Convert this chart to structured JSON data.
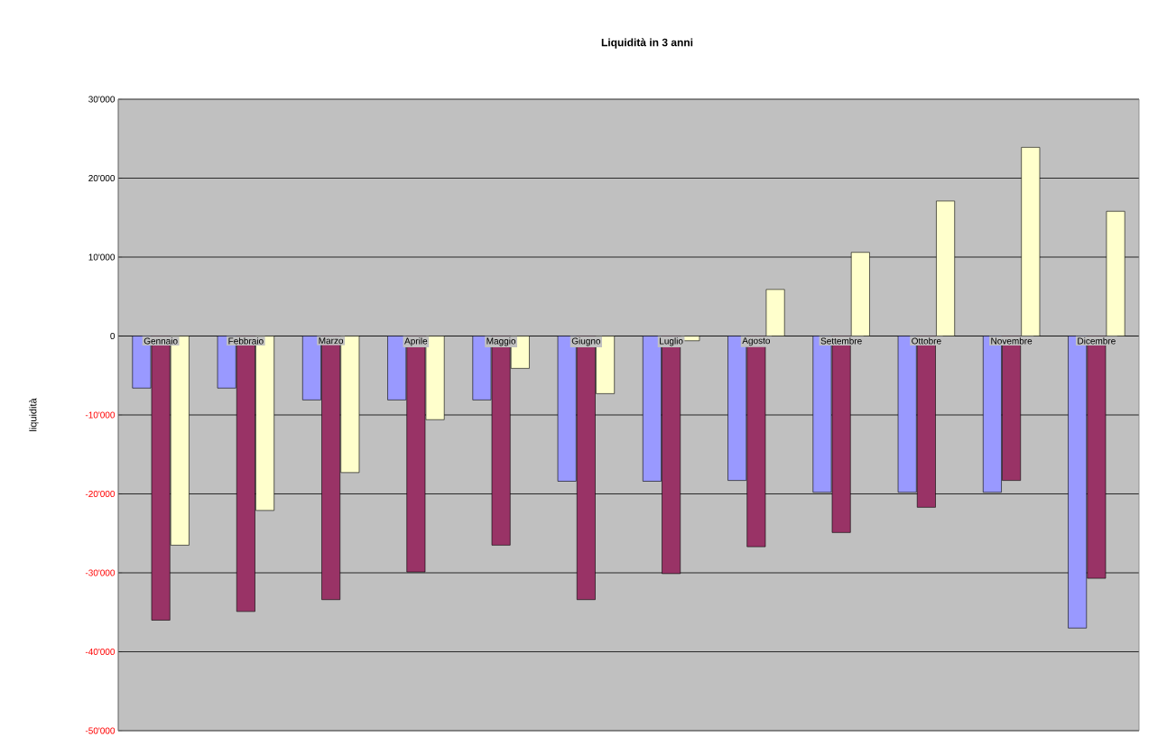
{
  "chart_data": {
    "type": "bar",
    "title": "Liquidità in 3 anni",
    "ylabel": "liquidità",
    "categories": [
      "Gennaio",
      "Febbraio",
      "Marzo",
      "Aprile",
      "Maggio",
      "Giugno",
      "Luglio",
      "Agosto",
      "Settembre",
      "Ottobre",
      "Novembre",
      "Dicembre"
    ],
    "series": [
      {
        "color": "#9999ff",
        "values": [
          -6600,
          -6600,
          -8100,
          -8100,
          -8100,
          -18400,
          -18400,
          -18300,
          -19800,
          -19800,
          -19800,
          -37000
        ]
      },
      {
        "color": "#993366",
        "values": [
          -36000,
          -34900,
          -33400,
          -29900,
          -26500,
          -33400,
          -30100,
          -26700,
          -24900,
          -21700,
          -18300,
          -30700
        ]
      },
      {
        "color": "#ffffcc",
        "values": [
          -26500,
          -22100,
          -17300,
          -10600,
          -4100,
          -7300,
          -600,
          5900,
          10600,
          17100,
          23900,
          15800
        ]
      }
    ],
    "ylim": [
      -50000,
      30000
    ],
    "yticks": [
      {
        "value": -50000,
        "label": "-50'000"
      },
      {
        "value": -40000,
        "label": "-40'000"
      },
      {
        "value": -30000,
        "label": "-30'000"
      },
      {
        "value": -20000,
        "label": "-20'000"
      },
      {
        "value": -10000,
        "label": "-10'000"
      },
      0,
      {
        "value": 10000,
        "label": "10'000"
      },
      {
        "value": 20000,
        "label": "20'000"
      },
      {
        "value": 30000,
        "label": "30'000"
      }
    ],
    "grid": "y"
  }
}
